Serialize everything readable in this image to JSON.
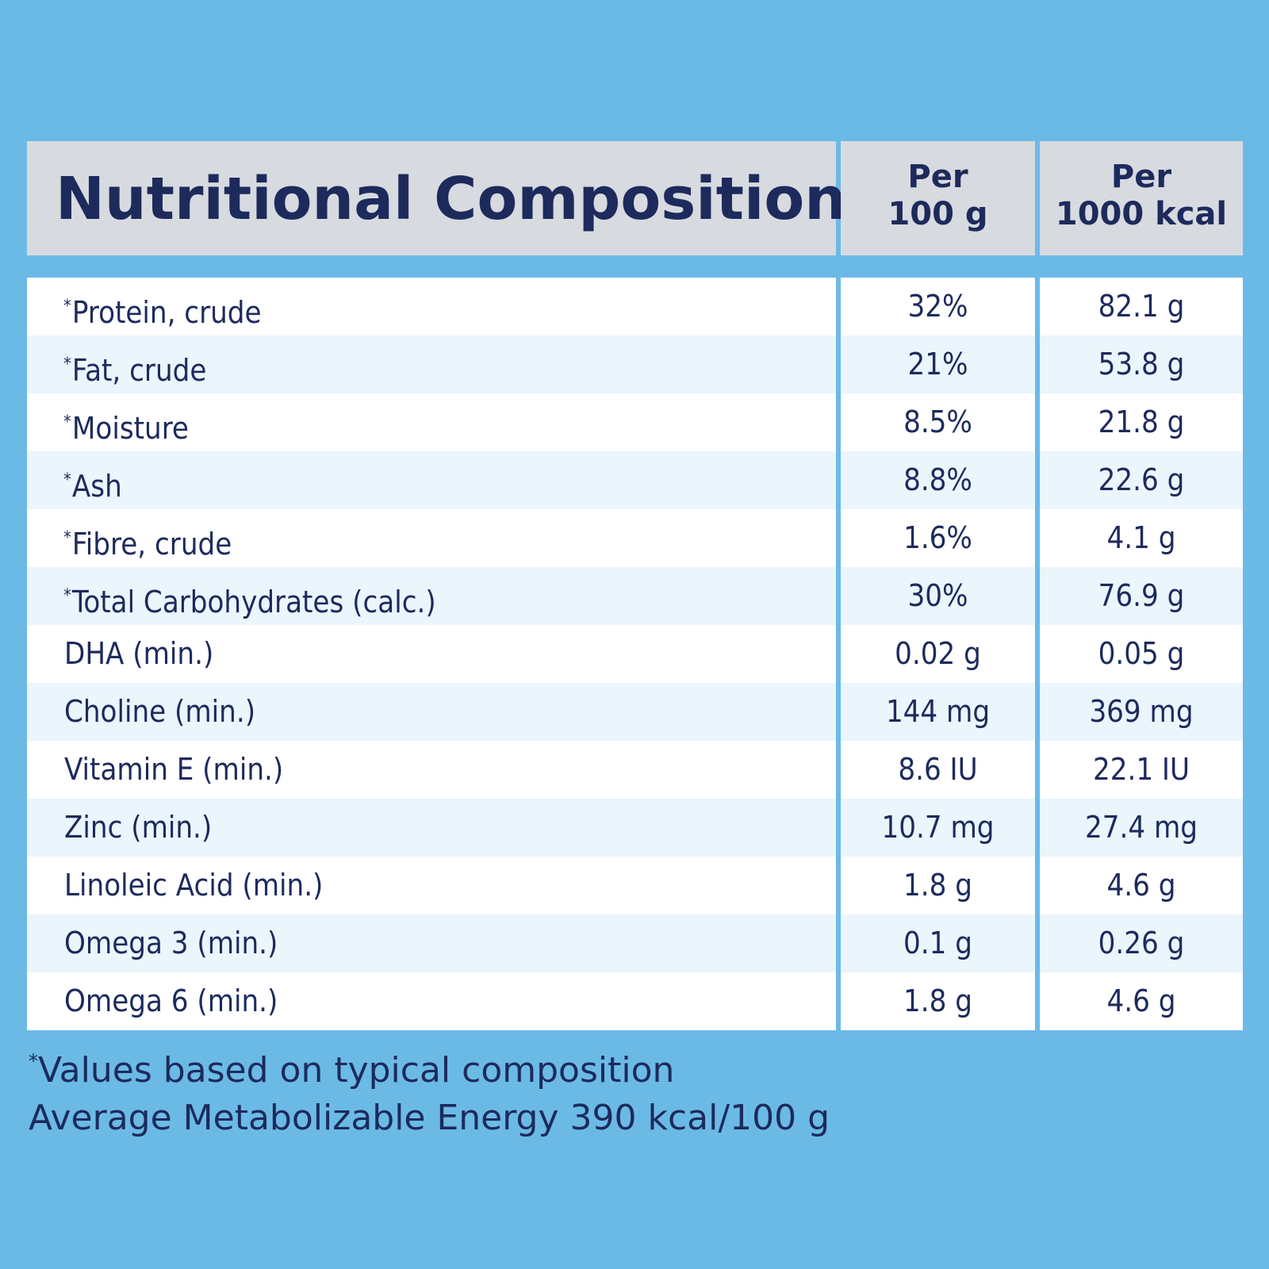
{
  "title": "Nutritional Composition",
  "columns": {
    "per_100g_line1": "Per",
    "per_100g_line2": "100 g",
    "per_1000kcal_line1": "Per",
    "per_1000kcal_line2": "1000 kcal"
  },
  "rows": [
    {
      "asterisk": "*",
      "name": "Protein, crude",
      "per_100g": "32%",
      "per_1000kcal": "82.1 g"
    },
    {
      "asterisk": "*",
      "name": "Fat, crude",
      "per_100g": "21%",
      "per_1000kcal": "53.8 g"
    },
    {
      "asterisk": "*",
      "name": "Moisture",
      "per_100g": "8.5%",
      "per_1000kcal": "21.8 g"
    },
    {
      "asterisk": "*",
      "name": "Ash",
      "per_100g": "8.8%",
      "per_1000kcal": "22.6 g"
    },
    {
      "asterisk": "*",
      "name": "Fibre, crude",
      "per_100g": "1.6%",
      "per_1000kcal": "4.1 g"
    },
    {
      "asterisk": "*",
      "name": "Total Carbohydrates (calc.)",
      "per_100g": "30%",
      "per_1000kcal": "76.9 g"
    },
    {
      "asterisk": "",
      "name": "DHA (min.)",
      "per_100g": "0.02 g",
      "per_1000kcal": "0.05 g"
    },
    {
      "asterisk": "",
      "name": "Choline (min.)",
      "per_100g": "144 mg",
      "per_1000kcal": "369 mg"
    },
    {
      "asterisk": "",
      "name": "Vitamin E (min.)",
      "per_100g": "8.6 IU",
      "per_1000kcal": "22.1 IU"
    },
    {
      "asterisk": "",
      "name": "Zinc (min.)",
      "per_100g": "10.7 mg",
      "per_1000kcal": "27.4 mg"
    },
    {
      "asterisk": "",
      "name": "Linoleic Acid (min.)",
      "per_100g": "1.8 g",
      "per_1000kcal": "4.6 g"
    },
    {
      "asterisk": "",
      "name": "Omega 3 (min.)",
      "per_100g": "0.1 g",
      "per_1000kcal": "0.26 g"
    },
    {
      "asterisk": "",
      "name": "Omega 6 (min.)",
      "per_100g": "1.8 g",
      "per_1000kcal": "4.6 g"
    }
  ],
  "footnote": {
    "asterisk": "*",
    "line1": "Values based on typical composition",
    "line2": "Average Metabolizable Energy 390 kcal/100 g"
  },
  "colors": {
    "background": "#6bbae6",
    "header_bg": "#d7dadf",
    "row_white": "#ffffff",
    "row_tint": "#eaf5fc",
    "text": "#1d2a5c"
  }
}
